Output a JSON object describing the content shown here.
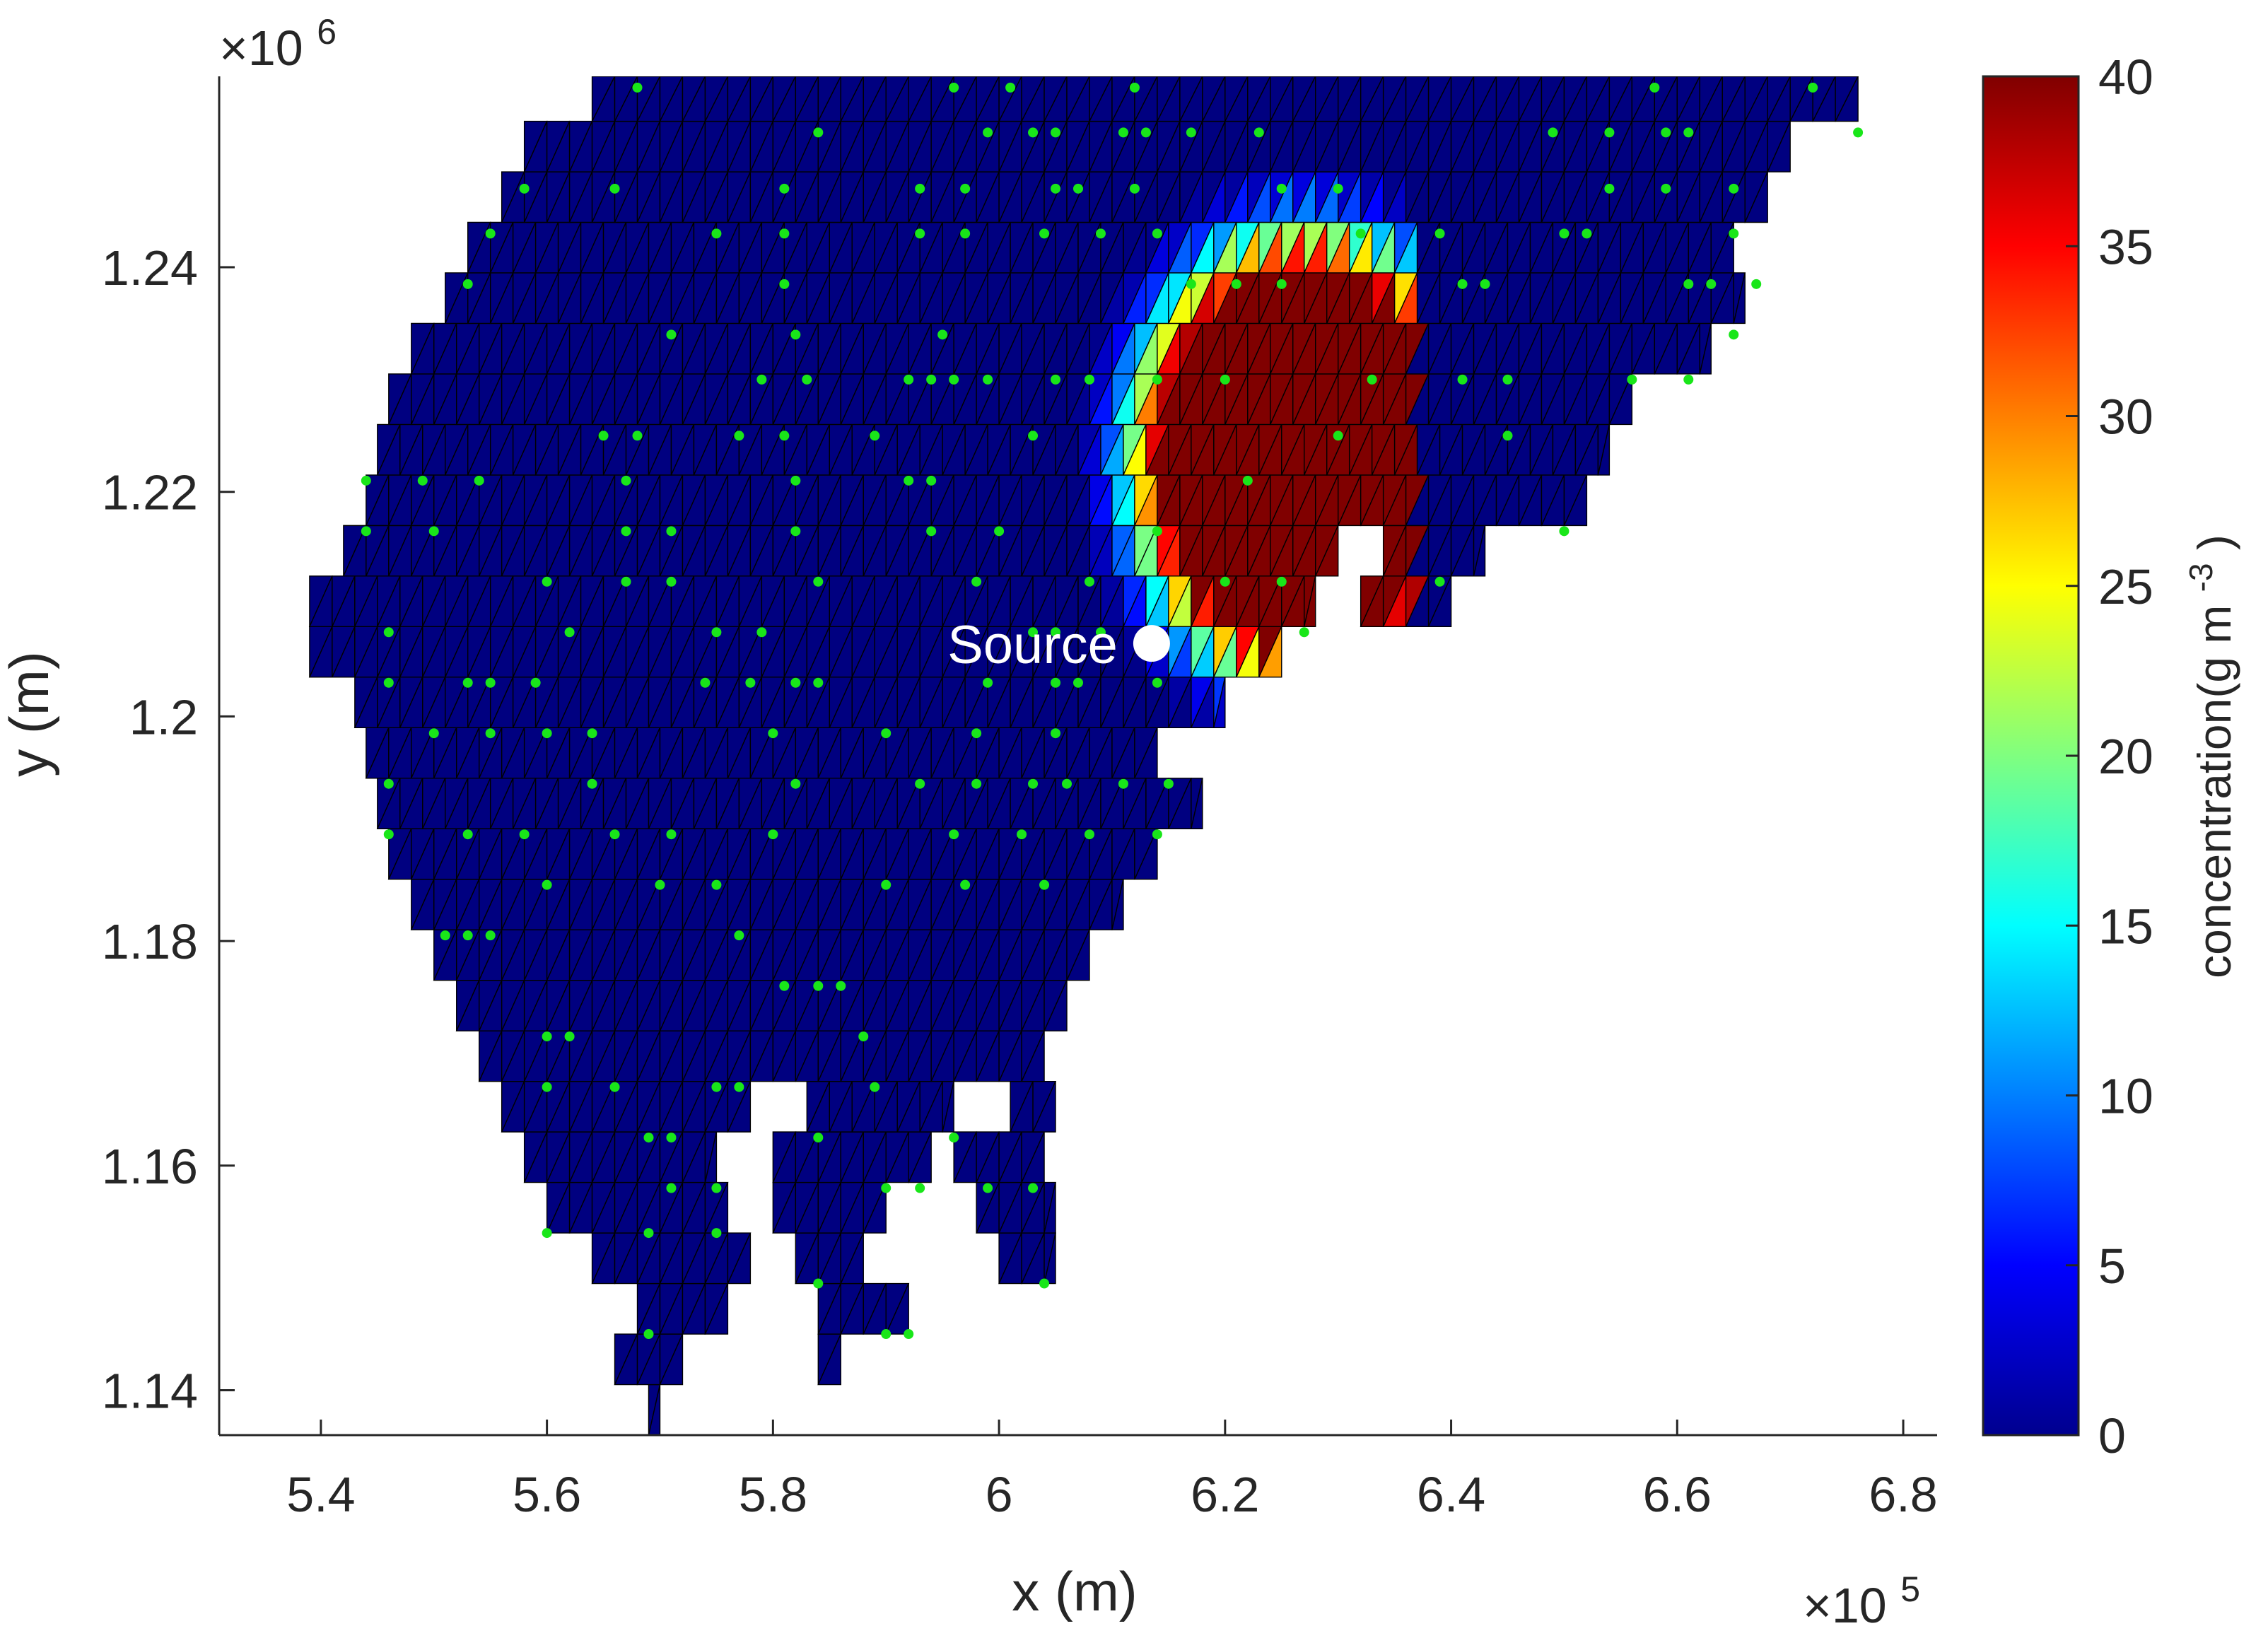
{
  "chart_data": {
    "type": "heatmap",
    "title": "",
    "xlabel": "x (m)",
    "ylabel": "y (m)",
    "x_exponent_label": "×10",
    "x_exponent_power": "5",
    "y_exponent_label": "×10",
    "y_exponent_power": "6",
    "xlim": [
      531000,
      683000
    ],
    "ylim": [
      1136000,
      1257000
    ],
    "x_ticks": [
      540000,
      560000,
      580000,
      600000,
      620000,
      640000,
      660000,
      680000
    ],
    "x_tick_labels": [
      "5.4",
      "5.6",
      "5.8",
      "6",
      "6.2",
      "6.4",
      "6.6",
      "6.8"
    ],
    "y_ticks": [
      1140000,
      1160000,
      1180000,
      1200000,
      1220000,
      1240000
    ],
    "y_tick_labels": [
      "1.14",
      "1.16",
      "1.18",
      "1.2",
      "1.22",
      "1.24"
    ],
    "colorbar": {
      "label": "concentration(g m",
      "label_power": "-3",
      "label_end": ")",
      "colormap": "jet",
      "range": [
        0,
        40
      ],
      "ticks": [
        0,
        5,
        10,
        15,
        20,
        25,
        30,
        35,
        40
      ],
      "tick_labels": [
        "0",
        "5",
        "10",
        "15",
        "20",
        "25",
        "30",
        "35",
        "40"
      ]
    },
    "mesh": {
      "cell_size": [
        2000,
        4500
      ],
      "rows": [
        {
          "y0": 1136000,
          "y1": 1140500,
          "segments": [
            [
              569000,
              570000
            ]
          ]
        },
        {
          "y0": 1140500,
          "y1": 1145000,
          "segments": [
            [
              566000,
              572000
            ],
            [
              584000,
              586000
            ]
          ]
        },
        {
          "y0": 1145000,
          "y1": 1149500,
          "segments": [
            [
              568000,
              576000
            ],
            [
              584000,
              592000
            ]
          ]
        },
        {
          "y0": 1149500,
          "y1": 1154000,
          "segments": [
            [
              564000,
              578000
            ],
            [
              582000,
              588000
            ],
            [
              600000,
              605000
            ]
          ]
        },
        {
          "y0": 1154000,
          "y1": 1158500,
          "segments": [
            [
              560000,
              576000
            ],
            [
              580000,
              590000
            ],
            [
              598000,
              605000
            ]
          ]
        },
        {
          "y0": 1158500,
          "y1": 1163000,
          "segments": [
            [
              558000,
              575000
            ],
            [
              580000,
              594000
            ],
            [
              596000,
              604000
            ]
          ]
        },
        {
          "y0": 1163000,
          "y1": 1167500,
          "segments": [
            [
              556000,
              578000
            ],
            [
              583000,
              596000
            ],
            [
              601000,
              605000
            ]
          ]
        },
        {
          "y0": 1167500,
          "y1": 1172000,
          "segments": [
            [
              554000,
              604000
            ]
          ]
        },
        {
          "y0": 1172000,
          "y1": 1176500,
          "segments": [
            [
              552000,
              606000
            ]
          ]
        },
        {
          "y0": 1176500,
          "y1": 1181000,
          "segments": [
            [
              550000,
              608000
            ]
          ]
        },
        {
          "y0": 1181000,
          "y1": 1185500,
          "segments": [
            [
              548000,
              611000
            ]
          ]
        },
        {
          "y0": 1185500,
          "y1": 1190000,
          "segments": [
            [
              546000,
              614000
            ]
          ]
        },
        {
          "y0": 1190000,
          "y1": 1194500,
          "segments": [
            [
              545000,
              618000
            ]
          ]
        },
        {
          "y0": 1194500,
          "y1": 1199000,
          "segments": [
            [
              544000,
              614000
            ]
          ]
        },
        {
          "y0": 1199000,
          "y1": 1203500,
          "segments": [
            [
              543000,
              620000
            ]
          ]
        },
        {
          "y0": 1203500,
          "y1": 1208000,
          "segments": [
            [
              539000,
              625000
            ]
          ]
        },
        {
          "y0": 1208000,
          "y1": 1212500,
          "segments": [
            [
              539000,
              628000
            ],
            [
              632000,
              640000
            ]
          ]
        },
        {
          "y0": 1212500,
          "y1": 1217000,
          "segments": [
            [
              542000,
              630000
            ],
            [
              634000,
              643000
            ]
          ]
        },
        {
          "y0": 1217000,
          "y1": 1221500,
          "segments": [
            [
              544000,
              652000
            ]
          ]
        },
        {
          "y0": 1221500,
          "y1": 1226000,
          "segments": [
            [
              545000,
              654000
            ]
          ]
        },
        {
          "y0": 1226000,
          "y1": 1230500,
          "segments": [
            [
              546000,
              656000
            ]
          ]
        },
        {
          "y0": 1230500,
          "y1": 1235000,
          "segments": [
            [
              548000,
              663000
            ]
          ]
        },
        {
          "y0": 1235000,
          "y1": 1239500,
          "segments": [
            [
              551000,
              666000
            ]
          ]
        },
        {
          "y0": 1239500,
          "y1": 1244000,
          "segments": [
            [
              553000,
              665000
            ]
          ]
        },
        {
          "y0": 1244000,
          "y1": 1248500,
          "segments": [
            [
              556000,
              668000
            ]
          ]
        },
        {
          "y0": 1248500,
          "y1": 1253000,
          "segments": [
            [
              558000,
              670000
            ]
          ]
        },
        {
          "y0": 1253000,
          "y1": 1257000,
          "segments": [
            [
              564000,
              676000
            ]
          ]
        }
      ]
    },
    "plume": {
      "center": [
        627000,
        1223000
      ],
      "core_radius": [
        13000,
        17000
      ],
      "halo_width": 8000,
      "peak_value": 40,
      "clip_x_max": 637000,
      "clip_y_min": 1198000
    },
    "stations": {
      "color": "#19e619",
      "points": [
        [
          568000,
          1256000
        ],
        [
          596000,
          1256000
        ],
        [
          601000,
          1256000
        ],
        [
          612000,
          1256000
        ],
        [
          658000,
          1256000
        ],
        [
          672000,
          1256000
        ],
        [
          584000,
          1252000
        ],
        [
          599000,
          1252000
        ],
        [
          603000,
          1252000
        ],
        [
          605000,
          1252000
        ],
        [
          611000,
          1252000
        ],
        [
          613000,
          1252000
        ],
        [
          617000,
          1252000
        ],
        [
          623000,
          1252000
        ],
        [
          649000,
          1252000
        ],
        [
          654000,
          1252000
        ],
        [
          659000,
          1252000
        ],
        [
          661000,
          1252000
        ],
        [
          676000,
          1252000
        ],
        [
          558000,
          1247000
        ],
        [
          566000,
          1247000
        ],
        [
          581000,
          1247000
        ],
        [
          593000,
          1247000
        ],
        [
          597000,
          1247000
        ],
        [
          605000,
          1247000
        ],
        [
          607000,
          1247000
        ],
        [
          612000,
          1247000
        ],
        [
          625000,
          1247000
        ],
        [
          630000,
          1247000
        ],
        [
          654000,
          1247000
        ],
        [
          659000,
          1247000
        ],
        [
          665000,
          1247000
        ],
        [
          555000,
          1243000
        ],
        [
          575000,
          1243000
        ],
        [
          581000,
          1243000
        ],
        [
          593000,
          1243000
        ],
        [
          597000,
          1243000
        ],
        [
          604000,
          1243000
        ],
        [
          609000,
          1243000
        ],
        [
          614000,
          1243000
        ],
        [
          632000,
          1243000
        ],
        [
          639000,
          1243000
        ],
        [
          650000,
          1243000
        ],
        [
          652000,
          1243000
        ],
        [
          665000,
          1243000
        ],
        [
          553000,
          1238500
        ],
        [
          581000,
          1238500
        ],
        [
          617000,
          1238500
        ],
        [
          621000,
          1238500
        ],
        [
          625000,
          1238500
        ],
        [
          641000,
          1238500
        ],
        [
          643000,
          1238500
        ],
        [
          661000,
          1238500
        ],
        [
          663000,
          1238500
        ],
        [
          667000,
          1238500
        ],
        [
          571000,
          1234000
        ],
        [
          582000,
          1234000
        ],
        [
          595000,
          1234000
        ],
        [
          665000,
          1234000
        ],
        [
          579000,
          1230000
        ],
        [
          583000,
          1230000
        ],
        [
          592000,
          1230000
        ],
        [
          594000,
          1230000
        ],
        [
          596000,
          1230000
        ],
        [
          599000,
          1230000
        ],
        [
          605000,
          1230000
        ],
        [
          608000,
          1230000
        ],
        [
          614000,
          1230000
        ],
        [
          620000,
          1230000
        ],
        [
          633000,
          1230000
        ],
        [
          641000,
          1230000
        ],
        [
          645000,
          1230000
        ],
        [
          656000,
          1230000
        ],
        [
          661000,
          1230000
        ],
        [
          565000,
          1225000
        ],
        [
          568000,
          1225000
        ],
        [
          577000,
          1225000
        ],
        [
          581000,
          1225000
        ],
        [
          589000,
          1225000
        ],
        [
          603000,
          1225000
        ],
        [
          630000,
          1225000
        ],
        [
          645000,
          1225000
        ],
        [
          544000,
          1221000
        ],
        [
          549000,
          1221000
        ],
        [
          554000,
          1221000
        ],
        [
          567000,
          1221000
        ],
        [
          582000,
          1221000
        ],
        [
          592000,
          1221000
        ],
        [
          594000,
          1221000
        ],
        [
          622000,
          1221000
        ],
        [
          544000,
          1216500
        ],
        [
          550000,
          1216500
        ],
        [
          567000,
          1216500
        ],
        [
          571000,
          1216500
        ],
        [
          582000,
          1216500
        ],
        [
          594000,
          1216500
        ],
        [
          600000,
          1216500
        ],
        [
          614000,
          1216500
        ],
        [
          650000,
          1216500
        ],
        [
          560000,
          1212000
        ],
        [
          567000,
          1212000
        ],
        [
          571000,
          1212000
        ],
        [
          584000,
          1212000
        ],
        [
          598000,
          1212000
        ],
        [
          608000,
          1212000
        ],
        [
          620000,
          1212000
        ],
        [
          625000,
          1212000
        ],
        [
          639000,
          1212000
        ],
        [
          546000,
          1207500
        ],
        [
          562000,
          1207500
        ],
        [
          575000,
          1207500
        ],
        [
          579000,
          1207500
        ],
        [
          603000,
          1207500
        ],
        [
          605000,
          1207500
        ],
        [
          609000,
          1207500
        ],
        [
          614000,
          1207500
        ],
        [
          627000,
          1207500
        ],
        [
          546000,
          1203000
        ],
        [
          553000,
          1203000
        ],
        [
          555000,
          1203000
        ],
        [
          559000,
          1203000
        ],
        [
          574000,
          1203000
        ],
        [
          578000,
          1203000
        ],
        [
          582000,
          1203000
        ],
        [
          584000,
          1203000
        ],
        [
          599000,
          1203000
        ],
        [
          605000,
          1203000
        ],
        [
          607000,
          1203000
        ],
        [
          614000,
          1203000
        ],
        [
          550000,
          1198500
        ],
        [
          555000,
          1198500
        ],
        [
          560000,
          1198500
        ],
        [
          564000,
          1198500
        ],
        [
          580000,
          1198500
        ],
        [
          590000,
          1198500
        ],
        [
          598000,
          1198500
        ],
        [
          605000,
          1198500
        ],
        [
          546000,
          1194000
        ],
        [
          564000,
          1194000
        ],
        [
          582000,
          1194000
        ],
        [
          593000,
          1194000
        ],
        [
          598000,
          1194000
        ],
        [
          603000,
          1194000
        ],
        [
          606000,
          1194000
        ],
        [
          611000,
          1194000
        ],
        [
          615000,
          1194000
        ],
        [
          546000,
          1189500
        ],
        [
          553000,
          1189500
        ],
        [
          558000,
          1189500
        ],
        [
          566000,
          1189500
        ],
        [
          571000,
          1189500
        ],
        [
          580000,
          1189500
        ],
        [
          596000,
          1189500
        ],
        [
          602000,
          1189500
        ],
        [
          608000,
          1189500
        ],
        [
          614000,
          1189500
        ],
        [
          560000,
          1185000
        ],
        [
          570000,
          1185000
        ],
        [
          575000,
          1185000
        ],
        [
          590000,
          1185000
        ],
        [
          597000,
          1185000
        ],
        [
          604000,
          1185000
        ],
        [
          551000,
          1180500
        ],
        [
          553000,
          1180500
        ],
        [
          555000,
          1180500
        ],
        [
          577000,
          1180500
        ],
        [
          581000,
          1176000
        ],
        [
          584000,
          1176000
        ],
        [
          586000,
          1176000
        ],
        [
          560000,
          1171500
        ],
        [
          562000,
          1171500
        ],
        [
          588000,
          1171500
        ],
        [
          560000,
          1167000
        ],
        [
          566000,
          1167000
        ],
        [
          575000,
          1167000
        ],
        [
          577000,
          1167000
        ],
        [
          589000,
          1167000
        ],
        [
          569000,
          1162500
        ],
        [
          571000,
          1162500
        ],
        [
          584000,
          1162500
        ],
        [
          596000,
          1162500
        ],
        [
          571000,
          1158000
        ],
        [
          575000,
          1158000
        ],
        [
          590000,
          1158000
        ],
        [
          593000,
          1158000
        ],
        [
          599000,
          1158000
        ],
        [
          603000,
          1158000
        ],
        [
          560000,
          1154000
        ],
        [
          569000,
          1154000
        ],
        [
          575000,
          1154000
        ],
        [
          584000,
          1149500
        ],
        [
          604000,
          1149500
        ],
        [
          569000,
          1145000
        ],
        [
          590000,
          1145000
        ],
        [
          592000,
          1145000
        ]
      ]
    },
    "source": {
      "label": "Source",
      "x": 613500,
      "y": 1206500
    }
  }
}
